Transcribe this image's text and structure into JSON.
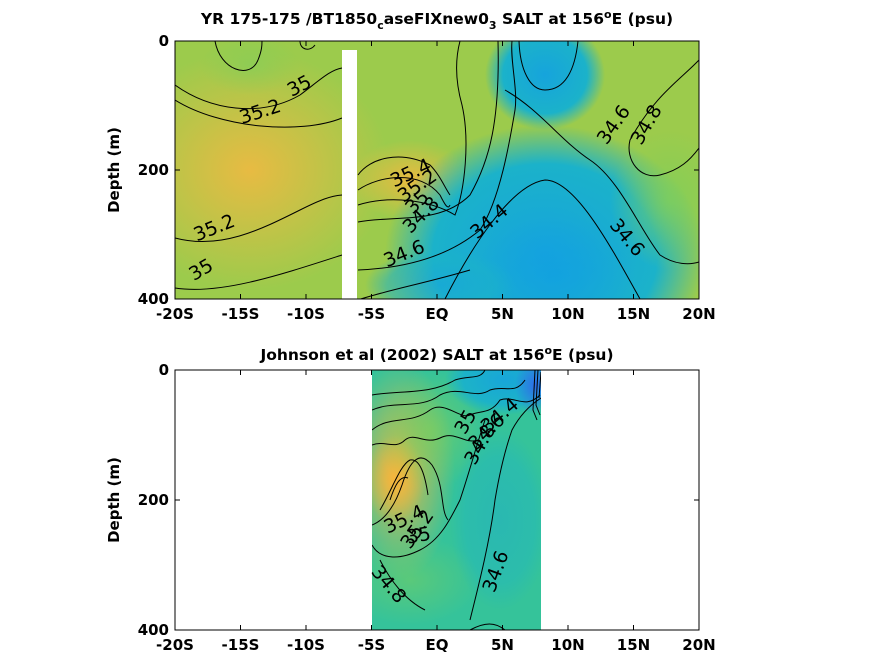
{
  "chart_data": [
    {
      "type": "heatmap",
      "title": "YR 175-175 /BT1850",
      "title_sub": "c",
      "title_mid": "aseFIXnew0",
      "title_sub2": "3",
      "title_tail": " SALT at 156",
      "title_sup": "o",
      "title_end": "E (psu)",
      "ylabel": "Depth (m)",
      "xlim": [
        -20,
        20
      ],
      "ylim": [
        0,
        400
      ],
      "x_ticks": [
        -20,
        -15,
        -10,
        -5,
        0,
        5,
        10,
        15,
        20
      ],
      "x_tick_labels": [
        "-20S",
        "-15S",
        "-10S",
        "-5S",
        "EQ",
        "5N",
        "10N",
        "15N",
        "20N"
      ],
      "y_ticks": [
        0,
        200,
        400
      ],
      "y_tick_labels": [
        "0",
        "200",
        "400"
      ],
      "missing_band": [
        -7.5,
        -6.3
      ],
      "contour_levels": [
        34.4,
        34.6,
        34.8,
        35,
        35.2,
        35.4
      ],
      "contour_labels": [
        {
          "text": "35",
          "x": -10.5,
          "y": 70,
          "rot": -28
        },
        {
          "text": "35.2",
          "x": -13.5,
          "y": 110,
          "rot": -18
        },
        {
          "text": "35.2",
          "x": -17,
          "y": 290,
          "rot": -22
        },
        {
          "text": "35",
          "x": -18,
          "y": 355,
          "rot": -30
        },
        {
          "text": "35.4",
          "x": -2,
          "y": 205,
          "rot": -25
        },
        {
          "text": "35.2",
          "x": -1.5,
          "y": 225,
          "rot": -35
        },
        {
          "text": "35",
          "x": -1.5,
          "y": 250,
          "rot": -45
        },
        {
          "text": "34.8",
          "x": -1.2,
          "y": 270,
          "rot": -45
        },
        {
          "text": "34.6",
          "x": -2.5,
          "y": 330,
          "rot": -22
        },
        {
          "text": "34.4",
          "x": 4,
          "y": 280,
          "rot": -40
        },
        {
          "text": "34.6",
          "x": 13.5,
          "y": 130,
          "rot": -55
        },
        {
          "text": "34.8",
          "x": 16,
          "y": 130,
          "rot": -60
        },
        {
          "text": "34.6",
          "x": 14.5,
          "y": 305,
          "rot": 50
        }
      ]
    },
    {
      "type": "heatmap",
      "title": "Johnson et al (2002) SALT at 156",
      "title_sup": "o",
      "title_end": "E (psu)",
      "ylabel": "Depth (m)",
      "xlim": [
        -20,
        20
      ],
      "ylim": [
        0,
        400
      ],
      "x_ticks": [
        -20,
        -15,
        -10,
        -5,
        0,
        5,
        10,
        15,
        20
      ],
      "x_tick_labels": [
        "-20S",
        "-15S",
        "-10S",
        "-5S",
        "EQ",
        "5N",
        "10N",
        "15N",
        "20N"
      ],
      "y_ticks": [
        0,
        200,
        400
      ],
      "y_tick_labels": [
        "0",
        "200",
        "400"
      ],
      "data_range": [
        -5,
        8
      ],
      "contour_levels": [
        34.4,
        34.6,
        34.8,
        35,
        35.2,
        35.4
      ],
      "contour_labels": [
        {
          "text": "34.4",
          "x": 4.8,
          "y": 70,
          "rot": -40
        },
        {
          "text": "34.6",
          "x": 3.8,
          "y": 95,
          "rot": -45
        },
        {
          "text": "34.8",
          "x": 3.3,
          "y": 115,
          "rot": -60
        },
        {
          "text": "35",
          "x": 2.2,
          "y": 80,
          "rot": -60
        },
        {
          "text": "35.4",
          "x": -2.5,
          "y": 230,
          "rot": -25
        },
        {
          "text": "35.2",
          "x": -1.5,
          "y": 245,
          "rot": -55
        },
        {
          "text": "35",
          "x": -1.4,
          "y": 255,
          "rot": -10
        },
        {
          "text": "34.6",
          "x": 4.5,
          "y": 310,
          "rot": -70
        },
        {
          "text": "34.8",
          "x": -3.7,
          "y": 330,
          "rot": 50
        }
      ]
    }
  ]
}
